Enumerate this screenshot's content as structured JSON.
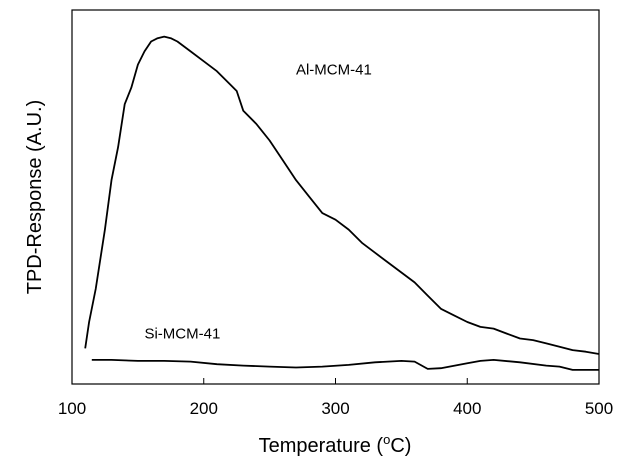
{
  "chart_data": {
    "type": "line",
    "title": "",
    "xlabel": "Temperature",
    "xlabel_unit_pre": " (",
    "xlabel_unit_sup": "o",
    "xlabel_unit_post": "C)",
    "ylabel": "TPD-Response (A.U.)",
    "xlim": [
      100,
      500
    ],
    "ylim": [
      0,
      1
    ],
    "xticks": [
      100,
      200,
      300,
      400,
      500
    ],
    "yticks": [],
    "grid": false,
    "series": [
      {
        "name": "Al-MCM-41",
        "x": [
          110,
          113,
          118,
          125,
          130,
          135,
          140,
          145,
          150,
          155,
          160,
          165,
          170,
          175,
          180,
          190,
          200,
          210,
          220,
          225,
          230,
          240,
          250,
          260,
          270,
          280,
          290,
          300,
          310,
          320,
          330,
          340,
          350,
          360,
          370,
          380,
          390,
          400,
          410,
          420,
          430,
          440,
          450,
          460,
          470,
          480,
          490,
          500
        ],
        "y": [
          0.02,
          0.1,
          0.2,
          0.38,
          0.53,
          0.63,
          0.76,
          0.81,
          0.88,
          0.92,
          0.95,
          0.96,
          0.965,
          0.96,
          0.95,
          0.92,
          0.89,
          0.86,
          0.82,
          0.8,
          0.74,
          0.7,
          0.65,
          0.59,
          0.53,
          0.48,
          0.43,
          0.41,
          0.38,
          0.34,
          0.31,
          0.28,
          0.25,
          0.22,
          0.18,
          0.14,
          0.12,
          0.1,
          0.085,
          0.08,
          0.065,
          0.05,
          0.045,
          0.035,
          0.025,
          0.015,
          0.01,
          0.003
        ]
      },
      {
        "name": "Si-MCM-41",
        "x": [
          115,
          130,
          150,
          170,
          190,
          210,
          230,
          250,
          270,
          290,
          310,
          330,
          350,
          360,
          370,
          380,
          400,
          410,
          420,
          440,
          460,
          470,
          480,
          490,
          500
        ],
        "y": [
          -0.015,
          -0.015,
          -0.018,
          -0.018,
          -0.02,
          -0.028,
          -0.032,
          -0.035,
          -0.038,
          -0.035,
          -0.03,
          -0.022,
          -0.018,
          -0.02,
          -0.042,
          -0.04,
          -0.025,
          -0.018,
          -0.015,
          -0.022,
          -0.032,
          -0.035,
          -0.045,
          -0.045,
          -0.045
        ]
      }
    ],
    "annotations": [
      {
        "text": "Al-MCM-41",
        "x": 270,
        "y": 0.85
      },
      {
        "text": "Si-MCM-41",
        "x": 155,
        "y": 0.05
      }
    ]
  }
}
